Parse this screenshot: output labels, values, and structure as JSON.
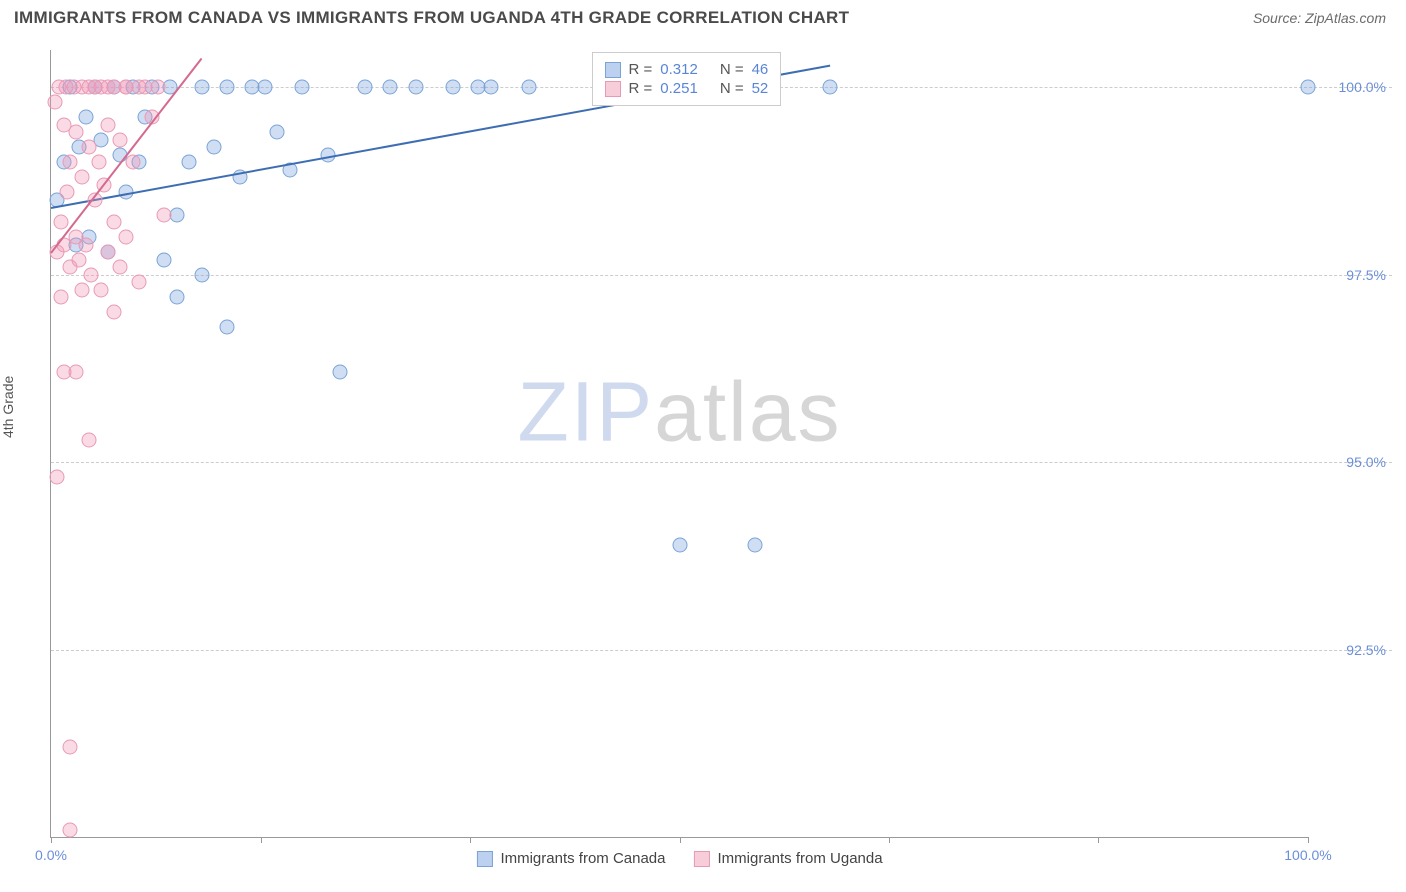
{
  "header": {
    "title": "IMMIGRANTS FROM CANADA VS IMMIGRANTS FROM UGANDA 4TH GRADE CORRELATION CHART",
    "source_prefix": "Source: ",
    "source_name": "ZipAtlas.com"
  },
  "chart": {
    "type": "scatter",
    "ylabel": "4th Grade",
    "xlim": [
      0,
      100
    ],
    "ylim": [
      90,
      100.5
    ],
    "xtick_positions": [
      0,
      16.7,
      33.3,
      50,
      66.7,
      83.3,
      100
    ],
    "xtick_labels": {
      "0": "0.0%",
      "100": "100.0%"
    },
    "ytick_positions": [
      92.5,
      95.0,
      97.5,
      100.0
    ],
    "ytick_labels": [
      "92.5%",
      "95.0%",
      "97.5%",
      "100.0%"
    ],
    "grid_color": "#cccccc",
    "axis_color": "#999999",
    "background_color": "#ffffff",
    "marker_size": 15,
    "marker_opacity": 0.45,
    "watermark": {
      "z": "ZIP",
      "rest": "atlas"
    },
    "series": [
      {
        "name": "Immigrants from Canada",
        "color_fill": "rgba(120,160,220,0.35)",
        "color_stroke": "#7aa3d8",
        "swatch_fill": "#bcd1ef",
        "swatch_stroke": "#7aa3d8",
        "trend_color": "#3d6db3",
        "r_value": "0.312",
        "n_value": "46",
        "trend": {
          "x1": 0,
          "y1": 98.4,
          "x2": 62,
          "y2": 100.3
        },
        "points": [
          [
            0.5,
            98.5
          ],
          [
            1.0,
            99.0
          ],
          [
            1.5,
            100.0
          ],
          [
            2.0,
            97.9
          ],
          [
            2.2,
            99.2
          ],
          [
            2.8,
            99.6
          ],
          [
            3.0,
            98.0
          ],
          [
            3.5,
            100.0
          ],
          [
            4.0,
            99.3
          ],
          [
            4.5,
            97.8
          ],
          [
            5.0,
            100.0
          ],
          [
            5.5,
            99.1
          ],
          [
            6.0,
            98.6
          ],
          [
            6.5,
            100.0
          ],
          [
            7.0,
            99.0
          ],
          [
            7.5,
            99.6
          ],
          [
            8.0,
            100.0
          ],
          [
            9.0,
            97.7
          ],
          [
            9.5,
            100.0
          ],
          [
            10.0,
            98.3
          ],
          [
            10,
            97.2
          ],
          [
            11.0,
            99.0
          ],
          [
            12.0,
            100.0
          ],
          [
            12,
            97.5
          ],
          [
            13.0,
            99.2
          ],
          [
            14.0,
            100.0
          ],
          [
            14,
            96.8
          ],
          [
            15,
            98.8
          ],
          [
            16,
            100.0
          ],
          [
            17,
            100.0
          ],
          [
            18,
            99.4
          ],
          [
            19,
            98.9
          ],
          [
            20,
            100.0
          ],
          [
            22,
            99.1
          ],
          [
            23,
            96.2
          ],
          [
            25,
            100.0
          ],
          [
            27,
            100.0
          ],
          [
            29,
            100.0
          ],
          [
            32,
            100.0
          ],
          [
            34,
            100.0
          ],
          [
            35,
            100.0
          ],
          [
            38,
            100.0
          ],
          [
            50,
            93.9
          ],
          [
            56,
            93.9
          ],
          [
            62,
            100.0
          ],
          [
            100,
            100.0
          ]
        ]
      },
      {
        "name": "Immigrants from Uganda",
        "color_fill": "rgba(240,150,180,0.35)",
        "color_stroke": "#e89ab5",
        "swatch_fill": "#f7cdd9",
        "swatch_stroke": "#e89ab5",
        "trend_color": "#d46a8e",
        "r_value": "0.251",
        "n_value": "52",
        "trend": {
          "x1": 0,
          "y1": 97.8,
          "x2": 12,
          "y2": 100.4
        },
        "points": [
          [
            0.3,
            99.8
          ],
          [
            0.5,
            97.8
          ],
          [
            0.6,
            100.0
          ],
          [
            0.8,
            98.2
          ],
          [
            1.0,
            99.5
          ],
          [
            1.0,
            97.9
          ],
          [
            1.2,
            100.0
          ],
          [
            1.3,
            98.6
          ],
          [
            1.5,
            99.0
          ],
          [
            1.5,
            97.6
          ],
          [
            1.8,
            100.0
          ],
          [
            2.0,
            98.0
          ],
          [
            2.0,
            99.4
          ],
          [
            2.2,
            97.7
          ],
          [
            2.5,
            100.0
          ],
          [
            2.5,
            98.8
          ],
          [
            2.8,
            97.9
          ],
          [
            3.0,
            100.0
          ],
          [
            3.0,
            99.2
          ],
          [
            3.2,
            97.5
          ],
          [
            3.5,
            98.5
          ],
          [
            3.5,
            100.0
          ],
          [
            3.8,
            99.0
          ],
          [
            4.0,
            97.3
          ],
          [
            4.0,
            100.0
          ],
          [
            4.2,
            98.7
          ],
          [
            4.5,
            99.5
          ],
          [
            4.5,
            97.8
          ],
          [
            5.0,
            100.0
          ],
          [
            5.0,
            98.2
          ],
          [
            5.5,
            99.3
          ],
          [
            5.5,
            97.6
          ],
          [
            6.0,
            100.0
          ],
          [
            6.0,
            98.0
          ],
          [
            6.5,
            99.0
          ],
          [
            7.0,
            100.0
          ],
          [
            7.0,
            97.4
          ],
          [
            7.5,
            100.0
          ],
          [
            8.0,
            99.6
          ],
          [
            8.5,
            100.0
          ],
          [
            9.0,
            98.3
          ],
          [
            1.0,
            96.2
          ],
          [
            2.0,
            96.2
          ],
          [
            0.5,
            94.8
          ],
          [
            3.0,
            95.3
          ],
          [
            4.5,
            100.0
          ],
          [
            5.0,
            97.0
          ],
          [
            6.0,
            100.0
          ],
          [
            1.5,
            91.2
          ],
          [
            1.5,
            90.1
          ],
          [
            0.8,
            97.2
          ],
          [
            2.5,
            97.3
          ]
        ]
      }
    ],
    "stats_box": {
      "rows": [
        {
          "swatch": 0,
          "r_label": "R =",
          "n_label": "N ="
        },
        {
          "swatch": 1,
          "r_label": "R =",
          "n_label": "N ="
        }
      ]
    },
    "bottom_legend": [
      {
        "series": 0
      },
      {
        "series": 1
      }
    ]
  }
}
